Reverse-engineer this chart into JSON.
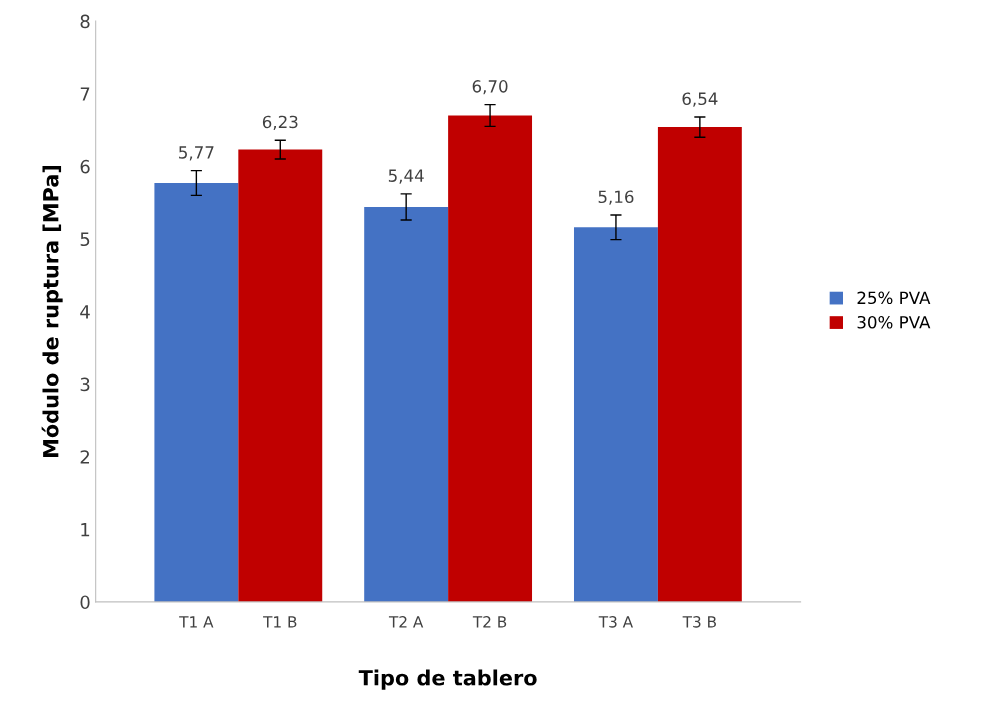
{
  "chart_data": {
    "type": "bar",
    "xlabel": "Tipo de tablero",
    "ylabel": "Módulo de ruptura [MPa]",
    "categories": [
      "T1 A",
      "T1 B",
      "T2 A",
      "T2 B",
      "T3 A",
      "T3 B"
    ],
    "series": [
      {
        "name": "25% PVA",
        "color": "#4472c4",
        "values": [
          5.77,
          null,
          5.44,
          null,
          5.16,
          null
        ],
        "errors": [
          0.17,
          null,
          0.18,
          null,
          0.17,
          null
        ],
        "value_labels": [
          "5,77",
          null,
          "5,44",
          null,
          "5,16",
          null
        ]
      },
      {
        "name": "30% PVA",
        "color": "#c00000",
        "values": [
          null,
          6.23,
          null,
          6.7,
          null,
          6.54
        ],
        "errors": [
          null,
          0.13,
          null,
          0.15,
          null,
          0.14
        ],
        "value_labels": [
          null,
          "6,23",
          null,
          "6,70",
          null,
          "6,54"
        ]
      }
    ],
    "ylim": [
      0,
      8
    ],
    "yticks": [
      0,
      1,
      2,
      3,
      4,
      5,
      6,
      7,
      8
    ],
    "grid": false,
    "legend": "right"
  }
}
